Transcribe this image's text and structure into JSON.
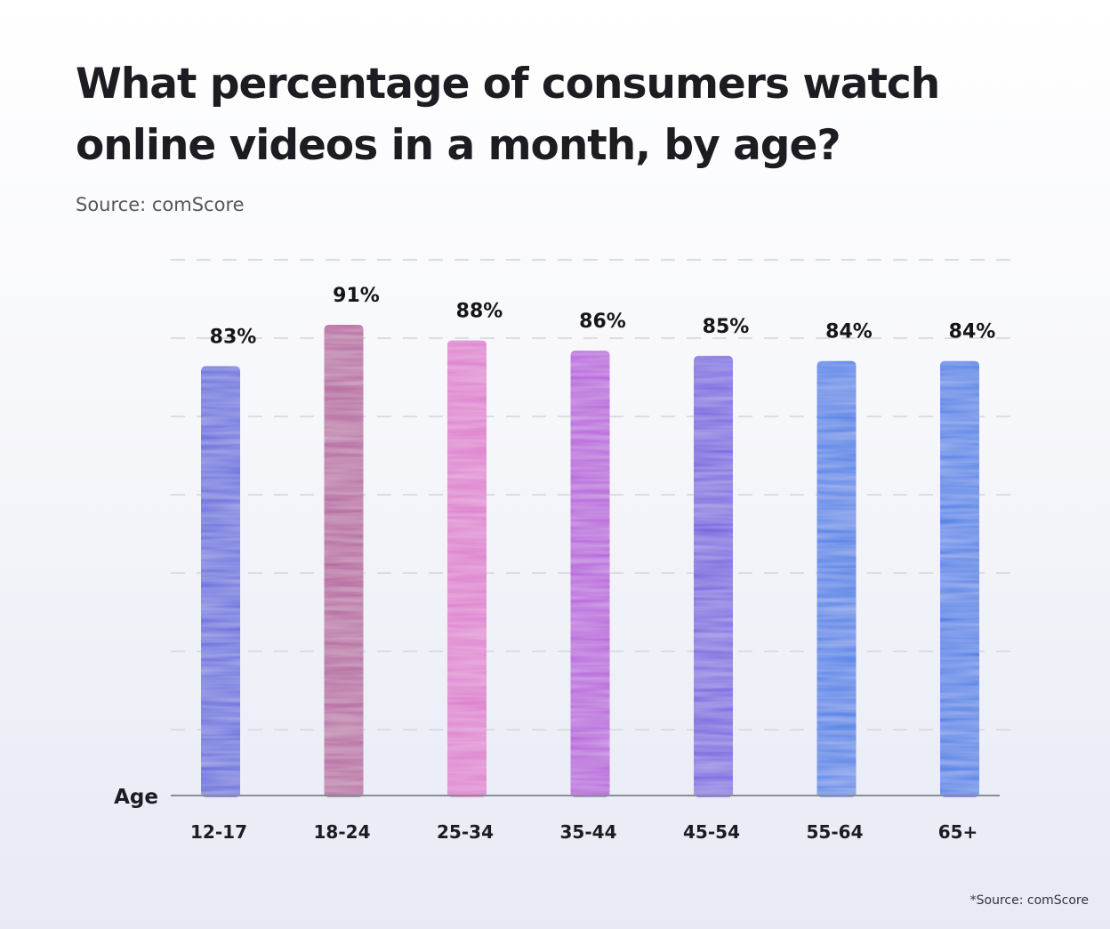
{
  "title_line1": "What percentage of consumers watch",
  "title_line2": "online videos in a month, by age?",
  "source": "Source: comScore",
  "footnote": "*Source: comScore",
  "chart_data": {
    "type": "bar",
    "xlabel": "Age",
    "ylabel": "",
    "categories": [
      "12-17",
      "18-24",
      "25-34",
      "35-44",
      "45-54",
      "55-64",
      "65+"
    ],
    "values": [
      83,
      91,
      88,
      86,
      85,
      84,
      84
    ],
    "value_labels": [
      "83%",
      "91%",
      "88%",
      "86%",
      "85%",
      "84%",
      "84%"
    ],
    "unit": "%",
    "grid": true,
    "bar_colors": [
      "#5a62dc",
      "#b35a9c",
      "#dc74cc",
      "#b44fda",
      "#6d58de",
      "#3a79e6",
      "#3a79e6"
    ]
  }
}
